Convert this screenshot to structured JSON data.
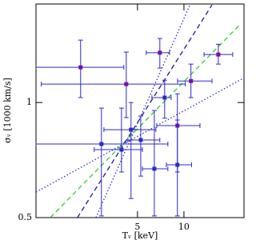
{
  "chart_data": {
    "type": "scatter",
    "xlabel": "Tᵥ [keV]",
    "ylabel": "σᵥ [1000 km/s]",
    "xscale": "log",
    "yscale": "log",
    "xlim": [
      1.1,
      24.5
    ],
    "ylim": [
      0.5,
      1.81
    ],
    "xticks": [
      5,
      10
    ],
    "yticks": [
      0.5,
      1
    ],
    "errorbar_color": "#2b2bc8",
    "series": [
      {
        "color": "#7b0fa0",
        "x": [
          2.14,
          4.23,
          6.98,
          16.7,
          11.1,
          9.07
        ],
        "xlo": [
          1.1,
          1.19,
          5.7,
          13.5,
          9.09,
          6.66
        ],
        "xhi": [
          4.08,
          10.2,
          8.07,
          20.7,
          15.2,
          12.7
        ],
        "y": [
          1.236,
          1.117,
          1.35,
          1.335,
          1.138,
          0.87
        ],
        "ylo": [
          1.03,
          0.913,
          1.23,
          1.26,
          1.03,
          0.658
        ],
        "yhi": [
          1.456,
          1.355,
          1.47,
          1.42,
          1.26,
          1.054
        ]
      },
      {
        "color": "#2b2bc8",
        "x": [
          2.92,
          3.94,
          4.54,
          5.25,
          6.43,
          7.5,
          9.07
        ],
        "xlo": [
          1.1,
          2.62,
          3.03,
          4.33,
          5.38,
          6.2,
          7.69
        ],
        "xhi": [
          7.87,
          5.38,
          6.58,
          6.98,
          7.87,
          8.26,
          11.2
        ],
        "y": [
          0.779,
          0.753,
          0.849,
          0.798,
          0.671,
          1.03,
          0.687
        ],
        "ylo": [
          0.505,
          0.658,
          0.561,
          0.642,
          0.505,
          0.91,
          0.505
        ],
        "yhi": [
          0.967,
          0.967,
          1.0,
          0.922,
          0.953,
          1.144,
          0.9
        ]
      }
    ],
    "lines": [
      {
        "color": "#33cc33",
        "dash": "6,4",
        "x": [
          1.36,
          23.1
        ],
        "y": [
          0.5,
          1.6
        ]
      },
      {
        "color": "#1a1a99",
        "dash": "6,4",
        "x": [
          2.04,
          15.2
        ],
        "y": [
          0.5,
          1.8
        ]
      },
      {
        "color": "#2b2bc8",
        "dash": "1.5,2.5",
        "x": [
          2.69,
          11.0
        ],
        "y": [
          0.5,
          1.81
        ]
      },
      {
        "color": "#2b2bc8",
        "dash": "1.5,2.5",
        "x": [
          1.1,
          24.5
        ],
        "y": [
          0.583,
          1.16
        ]
      }
    ]
  }
}
